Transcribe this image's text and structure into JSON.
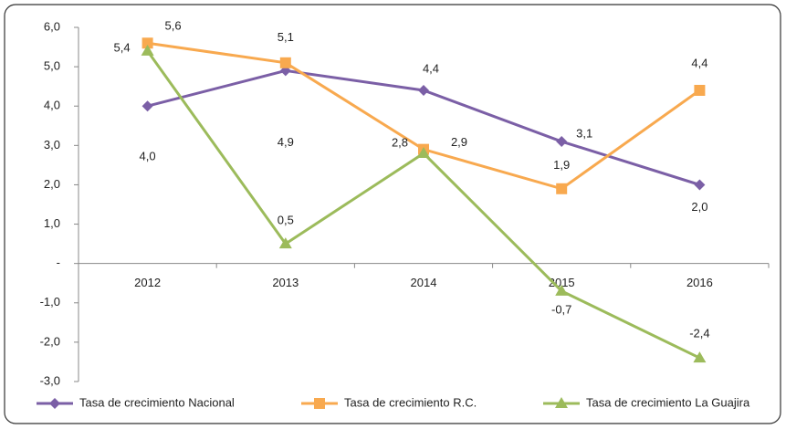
{
  "chart_data": {
    "type": "line",
    "categories": [
      "2012",
      "2013",
      "2014",
      "2015",
      "2016"
    ],
    "series": [
      {
        "name": "Tasa de crecimiento Nacional",
        "color": "#7b5fa6",
        "marker": "diamond",
        "values": [
          4.0,
          4.9,
          4.4,
          3.1,
          2.0
        ],
        "value_labels": [
          "4,0",
          "4,9",
          "4,4",
          "3,1",
          "2,0"
        ]
      },
      {
        "name": "Tasa de crecimiento R.C.",
        "color": "#f8a94f",
        "marker": "square",
        "values": [
          5.6,
          5.1,
          2.9,
          1.9,
          4.4
        ],
        "value_labels": [
          "5,6",
          "5,1",
          "2,9",
          "1,9",
          "4,4"
        ]
      },
      {
        "name": "Tasa de crecimiento La Guajira",
        "color": "#9cbb5b",
        "marker": "triangle",
        "values": [
          5.4,
          0.5,
          2.8,
          -0.7,
          -2.4
        ],
        "value_labels": [
          "5,4",
          "0,5",
          "2,8",
          "-0,7",
          "-2,4"
        ]
      }
    ],
    "ylim": [
      -3,
      6
    ],
    "yticks": [
      {
        "value": 6,
        "label": "6,0"
      },
      {
        "value": 5,
        "label": "5,0"
      },
      {
        "value": 4,
        "label": "4,0"
      },
      {
        "value": 3,
        "label": "3,0"
      },
      {
        "value": 2,
        "label": "2,0"
      },
      {
        "value": 1,
        "label": "1,0"
      },
      {
        "value": 0,
        "label": "-"
      },
      {
        "value": -1,
        "label": "-1,0"
      },
      {
        "value": -2,
        "label": "-2,0"
      },
      {
        "value": -3,
        "label": "-3,0"
      }
    ],
    "legend": "bottom",
    "grid": false
  }
}
